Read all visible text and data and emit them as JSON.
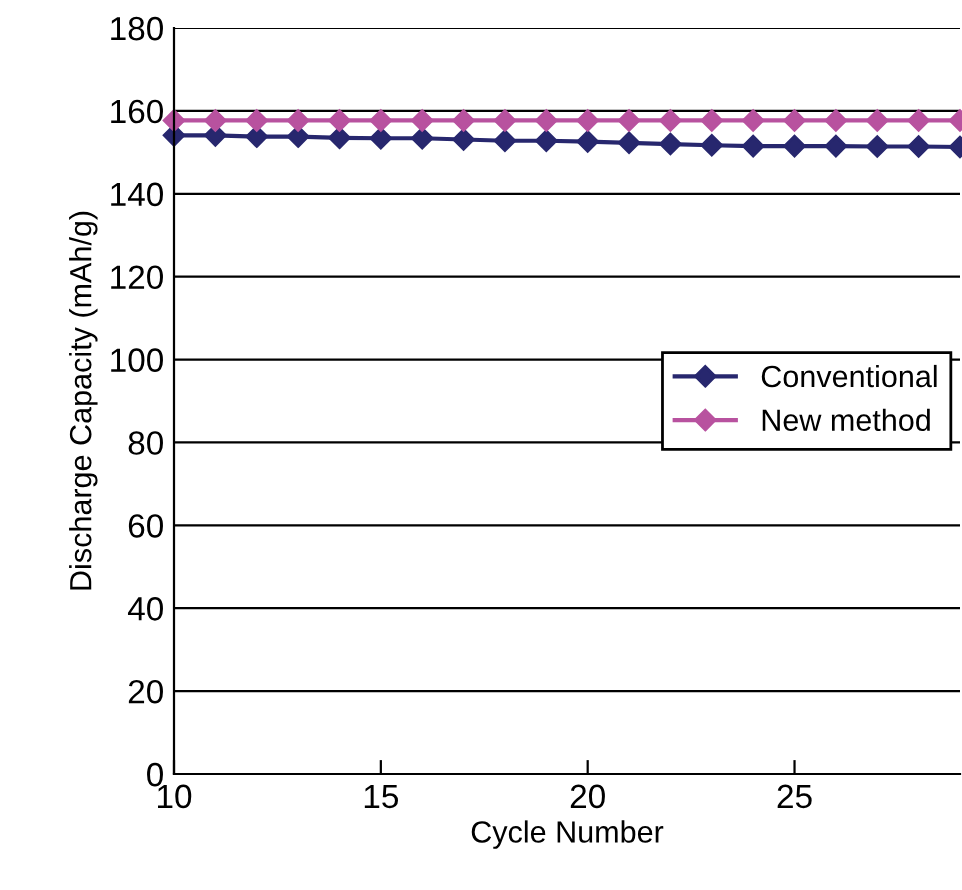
{
  "chart_data": {
    "type": "line",
    "xlabel": "Cycle Number",
    "ylabel": "Discharge Capacity (mAh/g)",
    "x": [
      10,
      11,
      12,
      13,
      14,
      15,
      16,
      17,
      18,
      19,
      20,
      21,
      22,
      23,
      24,
      25,
      26,
      27,
      28,
      29
    ],
    "series": [
      {
        "name": "Conventional",
        "color": "#27276e",
        "values": [
          154.1,
          154.1,
          153.8,
          153.8,
          153.5,
          153.4,
          153.4,
          153.1,
          152.8,
          152.8,
          152.6,
          152.3,
          152.0,
          151.7,
          151.5,
          151.5,
          151.5,
          151.4,
          151.4,
          151.3
        ]
      },
      {
        "name": "New method",
        "color": "#b8529f",
        "values": [
          157.7,
          157.7,
          157.7,
          157.7,
          157.7,
          157.7,
          157.7,
          157.7,
          157.7,
          157.7,
          157.7,
          157.7,
          157.7,
          157.7,
          157.7,
          157.7,
          157.7,
          157.7,
          157.7,
          157.7
        ]
      }
    ],
    "xlim": [
      10,
      29
    ],
    "xticks": [
      10,
      15,
      20,
      25
    ],
    "ylim": [
      0,
      180
    ],
    "yticks": [
      0,
      20,
      40,
      60,
      80,
      100,
      120,
      140,
      160,
      180
    ],
    "grid": "y",
    "legend": "center right",
    "marker": "diamond",
    "line_style": "solid"
  }
}
